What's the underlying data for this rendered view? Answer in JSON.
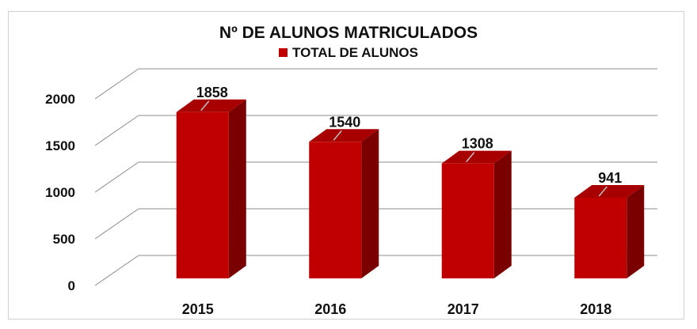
{
  "chart_data": {
    "type": "bar",
    "title": "Nº DE ALUNOS MATRICULADOS",
    "categories": [
      "2015",
      "2016",
      "2017",
      "2018"
    ],
    "series": [
      {
        "name": "TOTAL DE ALUNOS",
        "values": [
          1858,
          1540,
          1308,
          941
        ],
        "color": "#c00000"
      }
    ],
    "ylim": [
      0,
      2000
    ],
    "yticks": [
      "0",
      "500",
      "1000",
      "1500",
      "2000"
    ],
    "grid": true,
    "legend_position": "top",
    "style": "3d-column"
  }
}
